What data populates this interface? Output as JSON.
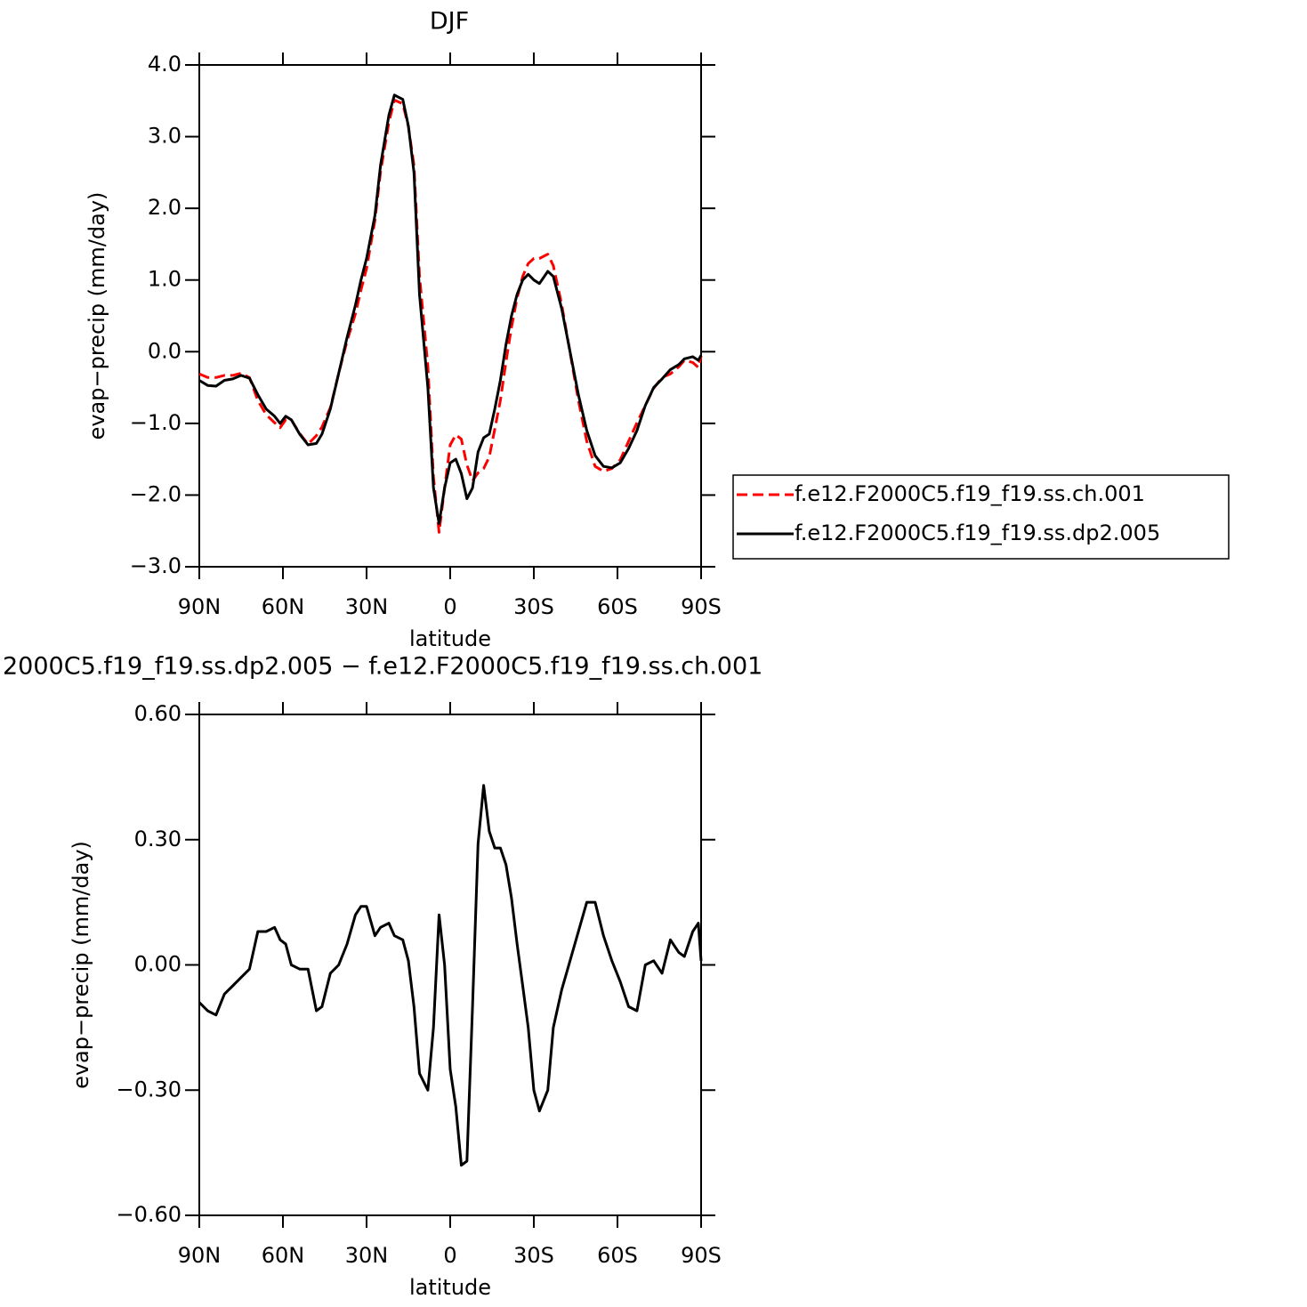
{
  "chart_data": [
    {
      "type": "line",
      "title": "DJF",
      "xlabel": "latitude",
      "ylabel": "evap−precip (mm/day)",
      "x": [
        90,
        87,
        84,
        81,
        78,
        75,
        72,
        69,
        66,
        63,
        61,
        59,
        57,
        54,
        51,
        48,
        46,
        43,
        40,
        37,
        34,
        32,
        30,
        27,
        25,
        22,
        20,
        17,
        15,
        13,
        11,
        8,
        6,
        4,
        2,
        0,
        -2,
        -4,
        -6,
        -8,
        -10,
        -12,
        -14,
        -16,
        -18,
        -20,
        -22,
        -24,
        -26,
        -28,
        -30,
        -32,
        -35,
        -37,
        -40,
        -43,
        -46,
        -49,
        -52,
        -55,
        -58,
        -61,
        -64,
        -67,
        -70,
        -73,
        -76,
        -79,
        -82,
        -84,
        -87,
        -89,
        -90
      ],
      "series": [
        {
          "name": "f.e12.F2000C5.f19_f19.ss.ch.001",
          "color": "#ff0000",
          "linestyle": "dashed",
          "values": [
            -0.31,
            -0.36,
            -0.36,
            -0.33,
            -0.33,
            -0.3,
            -0.36,
            -0.68,
            -0.88,
            -0.99,
            -1.06,
            -0.95,
            -0.95,
            -1.14,
            -1.29,
            -1.17,
            -1.05,
            -0.78,
            -0.3,
            0.15,
            0.53,
            0.86,
            1.16,
            1.83,
            2.51,
            3.2,
            3.51,
            3.46,
            3.14,
            2.6,
            1.06,
            -0.2,
            -1.75,
            -2.52,
            -1.9,
            -1.3,
            -1.16,
            -1.22,
            -1.58,
            -1.8,
            -1.69,
            -1.63,
            -1.47,
            -1.08,
            -0.68,
            -0.14,
            0.34,
            0.75,
            1.05,
            1.23,
            1.3,
            1.3,
            1.36,
            1.2,
            0.66,
            -0.01,
            -0.68,
            -1.25,
            -1.6,
            -1.67,
            -1.63,
            -1.51,
            -1.25,
            -0.99,
            -0.75,
            -0.51,
            -0.36,
            -0.31,
            -0.21,
            -0.12,
            -0.15,
            -0.22,
            -0.06
          ]
        },
        {
          "name": "f.e12.F2000C5.f19_f19.ss.dp2.005",
          "color": "#000000",
          "linestyle": "solid",
          "values": [
            -0.4,
            -0.47,
            -0.48,
            -0.4,
            -0.38,
            -0.33,
            -0.37,
            -0.6,
            -0.8,
            -0.9,
            -1.0,
            -0.9,
            -0.95,
            -1.15,
            -1.3,
            -1.28,
            -1.15,
            -0.8,
            -0.3,
            0.2,
            0.65,
            1.0,
            1.3,
            1.9,
            2.6,
            3.3,
            3.58,
            3.52,
            3.15,
            2.5,
            0.8,
            -0.5,
            -1.9,
            -2.4,
            -1.9,
            -1.55,
            -1.5,
            -1.7,
            -2.05,
            -1.9,
            -1.4,
            -1.2,
            -1.15,
            -0.8,
            -0.4,
            0.1,
            0.5,
            0.8,
            1.0,
            1.08,
            1.0,
            0.95,
            1.12,
            1.05,
            0.6,
            0.0,
            -0.6,
            -1.1,
            -1.45,
            -1.6,
            -1.62,
            -1.55,
            -1.35,
            -1.1,
            -0.75,
            -0.5,
            -0.38,
            -0.25,
            -0.18,
            -0.1,
            -0.07,
            -0.12,
            -0.05
          ]
        }
      ],
      "xlim": [
        90,
        -90
      ],
      "xticks": [
        {
          "value": 90,
          "label": "90N"
        },
        {
          "value": 60,
          "label": "60N"
        },
        {
          "value": 30,
          "label": "30N"
        },
        0,
        {
          "value": -30,
          "label": "30S"
        },
        {
          "value": -60,
          "label": "60S"
        },
        {
          "value": -90,
          "label": "90S"
        }
      ],
      "ylim": [
        -3,
        4
      ],
      "yticks": [
        {
          "value": -3,
          "label": "−3.0"
        },
        {
          "value": -2,
          "label": "−2.0"
        },
        {
          "value": -1,
          "label": "−1.0"
        },
        {
          "value": 0,
          "label": "0.0"
        },
        {
          "value": 1,
          "label": "1.0"
        },
        {
          "value": 2,
          "label": "2.0"
        },
        {
          "value": 3,
          "label": "3.0"
        },
        {
          "value": 4,
          "label": "4.0"
        }
      ],
      "legend": "right"
    },
    {
      "type": "line",
      "title": "2000C5.f19_f19.ss.dp2.005 − f.e12.F2000C5.f19_f19.ss.ch.001",
      "xlabel": "latitude",
      "ylabel": "evap−precip (mm/day)",
      "x": [
        90,
        87,
        84,
        81,
        78,
        75,
        72,
        69,
        66,
        63,
        61,
        59,
        57,
        54,
        51,
        48,
        46,
        43,
        40,
        37,
        34,
        32,
        30,
        27,
        25,
        22,
        20,
        17,
        15,
        13,
        11,
        8,
        6,
        4,
        2,
        0,
        -2,
        -4,
        -6,
        -8,
        -10,
        -12,
        -14,
        -16,
        -18,
        -20,
        -22,
        -24,
        -26,
        -28,
        -30,
        -32,
        -35,
        -37,
        -40,
        -43,
        -46,
        -49,
        -52,
        -55,
        -58,
        -61,
        -64,
        -67,
        -70,
        -73,
        -76,
        -79,
        -82,
        -84,
        -87,
        -89,
        -90
      ],
      "series": [
        {
          "color": "#000000",
          "linestyle": "solid",
          "values": [
            -0.09,
            -0.11,
            -0.12,
            -0.07,
            -0.05,
            -0.03,
            -0.01,
            0.08,
            0.08,
            0.09,
            0.06,
            0.05,
            0.0,
            -0.01,
            -0.01,
            -0.11,
            -0.1,
            -0.02,
            0.0,
            0.05,
            0.12,
            0.14,
            0.14,
            0.07,
            0.09,
            0.1,
            0.07,
            0.06,
            0.01,
            -0.1,
            -0.26,
            -0.3,
            -0.15,
            0.12,
            0.0,
            -0.25,
            -0.34,
            -0.48,
            -0.47,
            -0.1,
            0.29,
            0.43,
            0.32,
            0.28,
            0.28,
            0.24,
            0.16,
            0.05,
            -0.05,
            -0.15,
            -0.3,
            -0.35,
            -0.3,
            -0.15,
            -0.06,
            0.01,
            0.08,
            0.15,
            0.15,
            0.07,
            0.01,
            -0.04,
            -0.1,
            -0.11,
            0.0,
            0.01,
            -0.02,
            0.06,
            0.03,
            0.02,
            0.08,
            0.1,
            0.01
          ]
        }
      ],
      "xlim": [
        90,
        -90
      ],
      "xticks": [
        {
          "value": 90,
          "label": "90N"
        },
        {
          "value": 60,
          "label": "60N"
        },
        {
          "value": 30,
          "label": "30N"
        },
        0,
        {
          "value": -30,
          "label": "30S"
        },
        {
          "value": -60,
          "label": "60S"
        },
        {
          "value": -90,
          "label": "90S"
        }
      ],
      "ylim": [
        -0.6,
        0.6
      ],
      "yticks": [
        {
          "value": -0.6,
          "label": "−0.60"
        },
        {
          "value": -0.3,
          "label": "−0.30"
        },
        {
          "value": 0,
          "label": "0.00"
        },
        {
          "value": 0.3,
          "label": "0.30"
        },
        {
          "value": 0.6,
          "label": "0.60"
        }
      ]
    }
  ]
}
